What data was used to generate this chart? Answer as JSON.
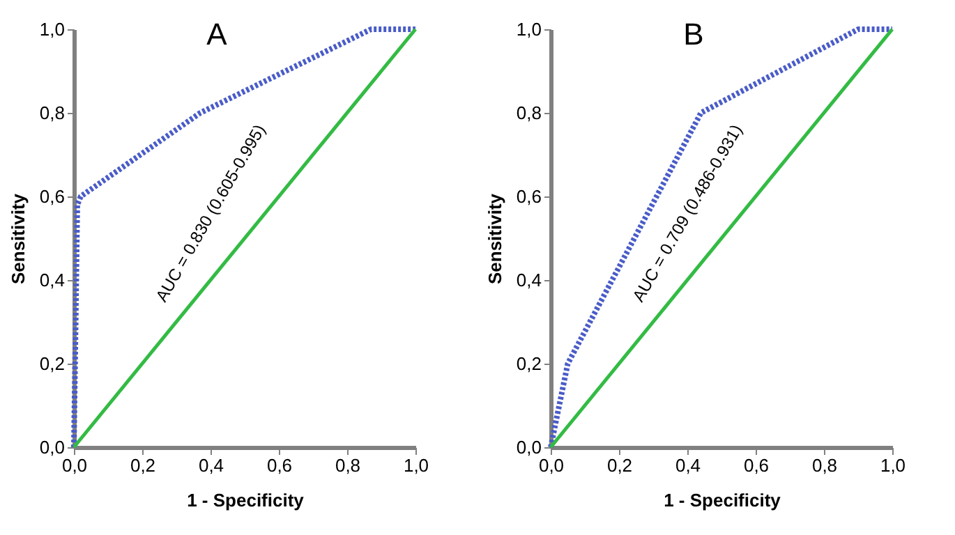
{
  "chart_data": [
    {
      "type": "line",
      "title": "A",
      "xlabel": "1 - Specificity",
      "ylabel": "Sensitivity",
      "xlim": [
        0,
        1
      ],
      "ylim": [
        0,
        1
      ],
      "xticks": [
        {
          "value": 0,
          "label": "0,0"
        },
        {
          "value": 0.2,
          "label": "0,2"
        },
        {
          "value": 0.4,
          "label": "0,4"
        },
        {
          "value": 0.6,
          "label": "0,6"
        },
        {
          "value": 0.8,
          "label": "0,8"
        },
        {
          "value": 1,
          "label": "1,0"
        }
      ],
      "yticks": [
        {
          "value": 0,
          "label": "0,0"
        },
        {
          "value": 0.2,
          "label": "0,2"
        },
        {
          "value": 0.4,
          "label": "0,4"
        },
        {
          "value": 0.6,
          "label": "0,6"
        },
        {
          "value": 0.8,
          "label": "0,8"
        },
        {
          "value": 1,
          "label": "1,0"
        }
      ],
      "series": [
        {
          "color": "#4a5cc8",
          "line_style": "dotted",
          "x": [
            0,
            0.01,
            0.02,
            0.37,
            0.87,
            1
          ],
          "values": [
            0,
            0.58,
            0.6,
            0.8,
            1,
            1
          ]
        },
        {
          "color": "#33bb44",
          "line_style": "solid",
          "x": [
            0,
            1
          ],
          "values": [
            0,
            1
          ]
        }
      ],
      "annotations": [
        "AUC = 0.830 (0.605-0.995)"
      ],
      "grid": false
    },
    {
      "type": "line",
      "title": "B",
      "xlabel": "1 - Specificity",
      "ylabel": "Sensitivity",
      "xlim": [
        0,
        1
      ],
      "ylim": [
        0,
        1
      ],
      "xticks": [
        {
          "value": 0,
          "label": "0,0"
        },
        {
          "value": 0.2,
          "label": "0,2"
        },
        {
          "value": 0.4,
          "label": "0,4"
        },
        {
          "value": 0.6,
          "label": "0,6"
        },
        {
          "value": 0.8,
          "label": "0,8"
        },
        {
          "value": 1,
          "label": "1,0"
        }
      ],
      "yticks": [
        {
          "value": 0,
          "label": "0,0"
        },
        {
          "value": 0.2,
          "label": "0,2"
        },
        {
          "value": 0.4,
          "label": "0,4"
        },
        {
          "value": 0.6,
          "label": "0,6"
        },
        {
          "value": 0.8,
          "label": "0,8"
        },
        {
          "value": 1,
          "label": "1,0"
        }
      ],
      "series": [
        {
          "color": "#4a5cc8",
          "line_style": "dotted",
          "x": [
            0,
            0.05,
            0.44,
            0.9,
            1
          ],
          "values": [
            0,
            0.2,
            0.8,
            1,
            1
          ]
        },
        {
          "color": "#33bb44",
          "line_style": "solid",
          "x": [
            0,
            1
          ],
          "values": [
            0,
            1
          ]
        }
      ],
      "annotations": [
        "AUC = 0.709 (0.486-0.931)"
      ],
      "grid": false
    }
  ]
}
